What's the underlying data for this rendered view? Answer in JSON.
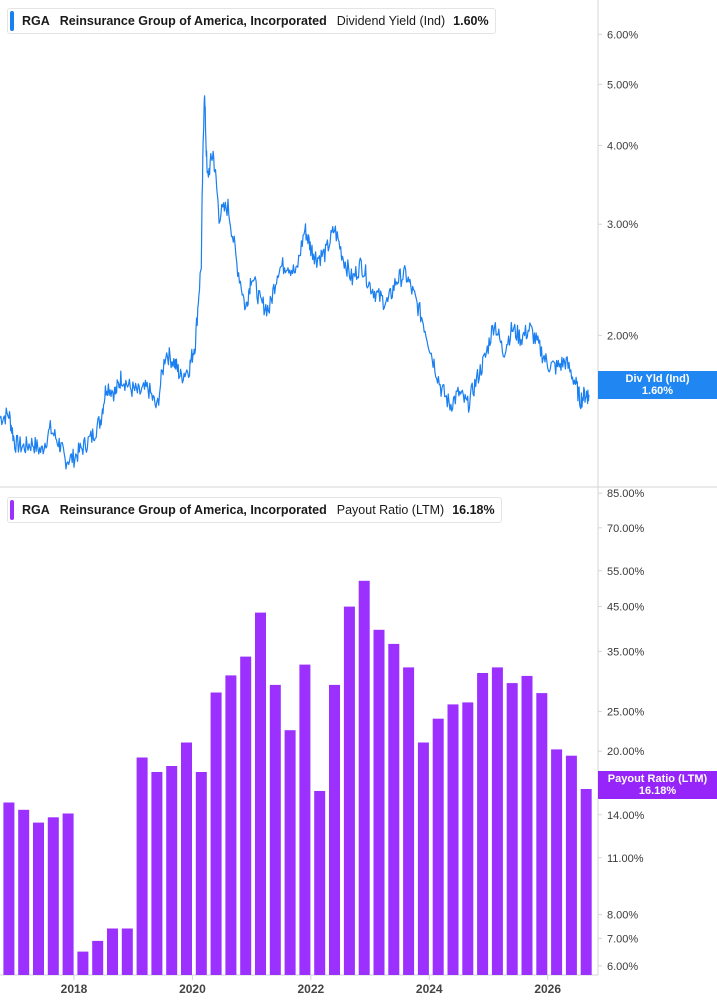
{
  "colors": {
    "yield_line": "#1a7ff0",
    "yield_tag": "#1f86f2",
    "payout_bar": "#9b30ff",
    "payout_tag": "#9625fa",
    "grid": "#d6d6d6",
    "axis_text": "#3a3a3a"
  },
  "top_legend": {
    "ticker": "RGA",
    "company": "Reinsurance Group of America, Incorporated",
    "metric": "Dividend Yield (Ind)",
    "value": "1.60%"
  },
  "bottom_legend": {
    "ticker": "RGA",
    "company": "Reinsurance Group of America, Incorporated",
    "metric": "Payout Ratio (LTM)",
    "value": "16.18%"
  },
  "top_tag": {
    "label": "Div Yld (Ind)",
    "value": "1.60%"
  },
  "bottom_tag": {
    "label": "Payout Ratio (LTM)",
    "value": "16.18%"
  },
  "chart_data": [
    {
      "type": "line",
      "series_name": "Dividend Yield (Ind)",
      "y_scale": "log",
      "y_ticks": [
        "2.00%",
        "3.00%",
        "4.00%",
        "5.00%",
        "6.00%"
      ],
      "y_tick_values": [
        2.0,
        3.0,
        4.0,
        5.0,
        6.0
      ],
      "ylim": [
        1.15,
        6.8
      ],
      "xlim": [
        2016.75,
        2026.85
      ],
      "x": [
        2016.75,
        2016.9,
        2017.0,
        2017.15,
        2017.3,
        2017.45,
        2017.6,
        2017.75,
        2017.85,
        2018.0,
        2018.15,
        2018.3,
        2018.45,
        2018.55,
        2018.7,
        2018.8,
        2018.95,
        2019.1,
        2019.25,
        2019.4,
        2019.55,
        2019.7,
        2019.8,
        2019.95,
        2020.05,
        2020.15,
        2020.2,
        2020.25,
        2020.35,
        2020.45,
        2020.6,
        2020.75,
        2020.9,
        2021.0,
        2021.15,
        2021.3,
        2021.45,
        2021.6,
        2021.75,
        2021.9,
        2022.0,
        2022.1,
        2022.25,
        2022.4,
        2022.55,
        2022.7,
        2022.85,
        2023.0,
        2023.15,
        2023.3,
        2023.45,
        2023.6,
        2023.75,
        2023.9,
        2024.05,
        2024.2,
        2024.35,
        2024.5,
        2024.65,
        2024.8,
        2024.95,
        2025.1,
        2025.25,
        2025.4,
        2025.55,
        2025.7,
        2025.85,
        2026.0,
        2026.15,
        2026.3,
        2026.45,
        2026.55,
        2026.65,
        2026.7
      ],
      "values": [
        1.48,
        1.5,
        1.35,
        1.33,
        1.35,
        1.31,
        1.42,
        1.35,
        1.27,
        1.28,
        1.33,
        1.38,
        1.47,
        1.67,
        1.62,
        1.72,
        1.65,
        1.62,
        1.65,
        1.53,
        1.88,
        1.81,
        1.72,
        1.78,
        1.95,
        2.6,
        4.85,
        3.55,
        3.9,
        3.1,
        3.2,
        2.6,
        2.2,
        2.5,
        2.25,
        2.2,
        2.55,
        2.6,
        2.5,
        2.95,
        2.75,
        2.65,
        2.7,
        2.95,
        2.65,
        2.45,
        2.6,
        2.4,
        2.3,
        2.25,
        2.45,
        2.5,
        2.3,
        2.1,
        1.85,
        1.65,
        1.55,
        1.62,
        1.55,
        1.7,
        1.85,
        2.1,
        1.88,
        2.05,
        1.98,
        2.05,
        1.92,
        1.8,
        1.78,
        1.82,
        1.7,
        1.58,
        1.62,
        1.6
      ]
    },
    {
      "type": "bar",
      "series_name": "Payout Ratio (LTM)",
      "y_scale": "log",
      "y_ticks": [
        "6.00%",
        "7.00%",
        "8.00%",
        "11.00%",
        "14.00%",
        "20.00%",
        "25.00%",
        "35.00%",
        "45.00%",
        "55.00%",
        "70.00%",
        "85.00%"
      ],
      "y_tick_values": [
        6,
        7,
        8,
        11,
        14,
        20,
        25,
        35,
        45,
        55,
        70,
        85
      ],
      "ylim": [
        5.7,
        88
      ],
      "xlim": [
        2016.75,
        2026.85
      ],
      "x_ticks": [
        "2018",
        "2020",
        "2022",
        "2024",
        "2026"
      ],
      "x_tick_values": [
        2018,
        2020,
        2022,
        2024,
        2026
      ],
      "x": [
        2016.9,
        2017.15,
        2017.4,
        2017.65,
        2017.9,
        2018.15,
        2018.4,
        2018.65,
        2018.9,
        2019.15,
        2019.4,
        2019.65,
        2019.9,
        2020.15,
        2020.4,
        2020.65,
        2020.9,
        2021.15,
        2021.4,
        2021.65,
        2021.9,
        2022.15,
        2022.4,
        2022.65,
        2022.9,
        2023.15,
        2023.4,
        2023.65,
        2023.9,
        2024.15,
        2024.4,
        2024.65,
        2024.9,
        2025.15,
        2025.4,
        2025.65,
        2025.9,
        2026.15,
        2026.4,
        2026.65
      ],
      "values": [
        15.0,
        14.4,
        13.4,
        13.8,
        14.1,
        6.5,
        6.9,
        7.4,
        7.4,
        19.3,
        17.8,
        18.4,
        21.0,
        17.8,
        27.8,
        30.6,
        34.0,
        43.5,
        29.0,
        22.5,
        32.5,
        16.0,
        29.0,
        45.0,
        52.0,
        39.5,
        36.5,
        32.0,
        21.0,
        24.0,
        26.0,
        26.3,
        31.0,
        32.0,
        29.3,
        30.5,
        27.7,
        20.2,
        19.5,
        16.18
      ]
    }
  ]
}
